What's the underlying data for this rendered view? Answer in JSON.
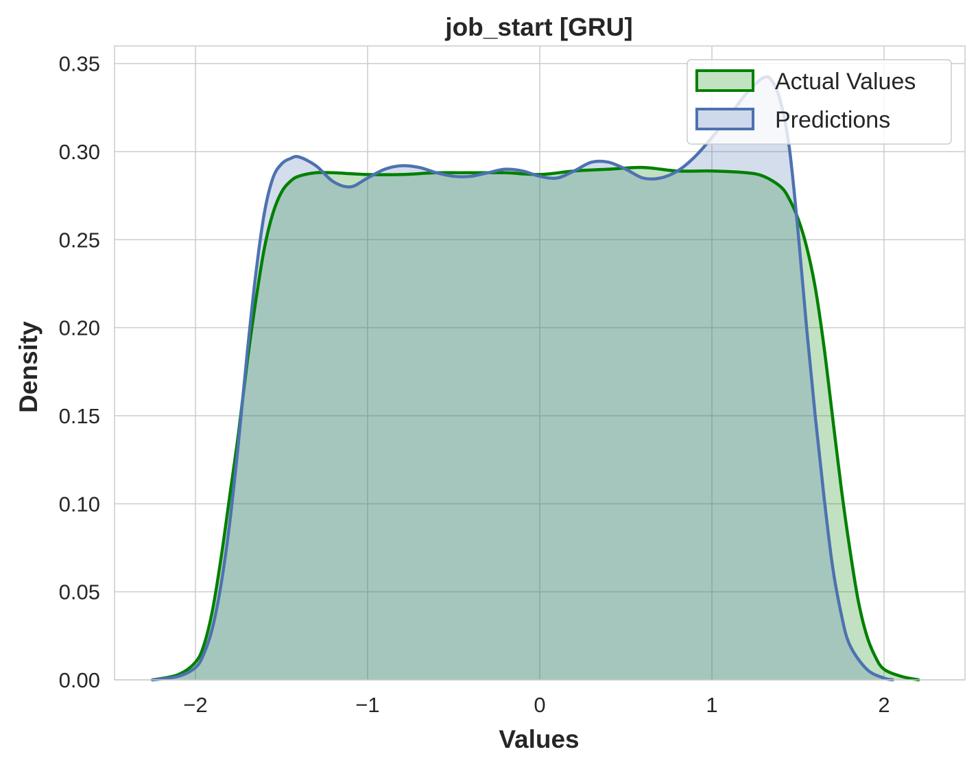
{
  "chart_data": {
    "type": "area",
    "title": "job_start [GRU]",
    "xlabel": "Values",
    "ylabel": "Density",
    "xlim": [
      -2.47,
      2.47
    ],
    "ylim": [
      0,
      0.36
    ],
    "xticks": [
      -2,
      -1,
      0,
      1,
      2
    ],
    "xtick_labels": [
      "−2",
      "−1",
      "0",
      "1",
      "2"
    ],
    "yticks": [
      0,
      0.05,
      0.1,
      0.15,
      0.2,
      0.25,
      0.3,
      0.35
    ],
    "ytick_labels": [
      "0.00",
      "0.05",
      "0.10",
      "0.15",
      "0.20",
      "0.25",
      "0.30",
      "0.35"
    ],
    "grid": true,
    "legend_position": "top-right",
    "series": [
      {
        "name": "Actual Values",
        "color": "#008000",
        "fill": "#c2e3c2",
        "points": [
          [
            -2.25,
            0.0
          ],
          [
            -2.1,
            0.003
          ],
          [
            -2.0,
            0.01
          ],
          [
            -1.95,
            0.02
          ],
          [
            -1.9,
            0.04
          ],
          [
            -1.85,
            0.07
          ],
          [
            -1.8,
            0.105
          ],
          [
            -1.75,
            0.14
          ],
          [
            -1.7,
            0.18
          ],
          [
            -1.65,
            0.215
          ],
          [
            -1.6,
            0.245
          ],
          [
            -1.55,
            0.265
          ],
          [
            -1.5,
            0.277
          ],
          [
            -1.45,
            0.283
          ],
          [
            -1.4,
            0.286
          ],
          [
            -1.3,
            0.288
          ],
          [
            -1.2,
            0.288
          ],
          [
            -1.0,
            0.287
          ],
          [
            -0.8,
            0.287
          ],
          [
            -0.6,
            0.288
          ],
          [
            -0.4,
            0.288
          ],
          [
            -0.2,
            0.288
          ],
          [
            0.0,
            0.287
          ],
          [
            0.2,
            0.289
          ],
          [
            0.4,
            0.29
          ],
          [
            0.6,
            0.291
          ],
          [
            0.8,
            0.289
          ],
          [
            1.0,
            0.289
          ],
          [
            1.2,
            0.288
          ],
          [
            1.3,
            0.286
          ],
          [
            1.4,
            0.28
          ],
          [
            1.45,
            0.273
          ],
          [
            1.5,
            0.262
          ],
          [
            1.55,
            0.246
          ],
          [
            1.6,
            0.223
          ],
          [
            1.65,
            0.19
          ],
          [
            1.7,
            0.15
          ],
          [
            1.75,
            0.11
          ],
          [
            1.8,
            0.075
          ],
          [
            1.85,
            0.045
          ],
          [
            1.9,
            0.025
          ],
          [
            1.95,
            0.013
          ],
          [
            2.0,
            0.006
          ],
          [
            2.1,
            0.002
          ],
          [
            2.2,
            0.0
          ]
        ]
      },
      {
        "name": "Predictions",
        "color": "#4c72b0",
        "fill": "#d0d9ec",
        "points": [
          [
            -2.25,
            0.0
          ],
          [
            -2.1,
            0.002
          ],
          [
            -2.0,
            0.007
          ],
          [
            -1.95,
            0.015
          ],
          [
            -1.9,
            0.03
          ],
          [
            -1.85,
            0.055
          ],
          [
            -1.8,
            0.09
          ],
          [
            -1.75,
            0.135
          ],
          [
            -1.7,
            0.185
          ],
          [
            -1.65,
            0.23
          ],
          [
            -1.6,
            0.265
          ],
          [
            -1.55,
            0.285
          ],
          [
            -1.5,
            0.293
          ],
          [
            -1.45,
            0.296
          ],
          [
            -1.4,
            0.297
          ],
          [
            -1.3,
            0.292
          ],
          [
            -1.2,
            0.283
          ],
          [
            -1.1,
            0.28
          ],
          [
            -1.0,
            0.285
          ],
          [
            -0.9,
            0.29
          ],
          [
            -0.8,
            0.292
          ],
          [
            -0.7,
            0.291
          ],
          [
            -0.6,
            0.288
          ],
          [
            -0.5,
            0.286
          ],
          [
            -0.4,
            0.286
          ],
          [
            -0.3,
            0.288
          ],
          [
            -0.2,
            0.29
          ],
          [
            -0.1,
            0.289
          ],
          [
            0.0,
            0.286
          ],
          [
            0.1,
            0.285
          ],
          [
            0.2,
            0.289
          ],
          [
            0.3,
            0.294
          ],
          [
            0.4,
            0.294
          ],
          [
            0.5,
            0.29
          ],
          [
            0.6,
            0.285
          ],
          [
            0.7,
            0.285
          ],
          [
            0.8,
            0.289
          ],
          [
            0.9,
            0.297
          ],
          [
            1.0,
            0.308
          ],
          [
            1.1,
            0.32
          ],
          [
            1.2,
            0.333
          ],
          [
            1.3,
            0.342
          ],
          [
            1.35,
            0.34
          ],
          [
            1.4,
            0.328
          ],
          [
            1.45,
            0.302
          ],
          [
            1.5,
            0.255
          ],
          [
            1.55,
            0.2
          ],
          [
            1.6,
            0.15
          ],
          [
            1.65,
            0.105
          ],
          [
            1.7,
            0.065
          ],
          [
            1.75,
            0.038
          ],
          [
            1.8,
            0.02
          ],
          [
            1.9,
            0.006
          ],
          [
            2.0,
            0.001
          ],
          [
            2.05,
            0.0
          ]
        ]
      }
    ]
  }
}
